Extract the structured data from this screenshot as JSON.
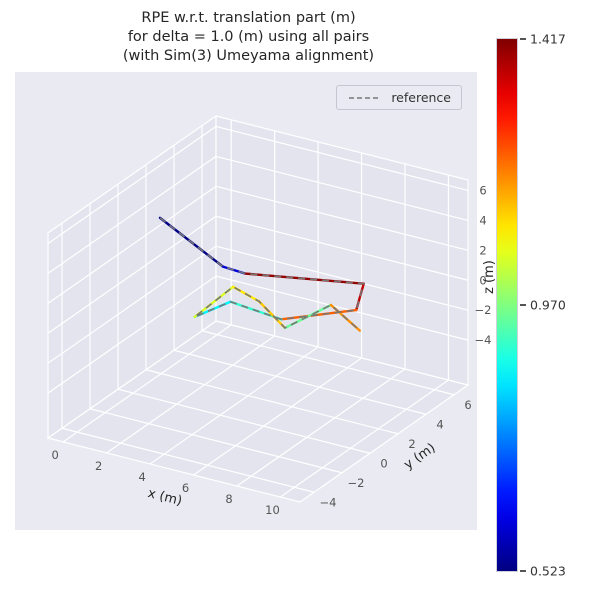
{
  "chart_data": {
    "type": "line",
    "plot_kind": "3d-trajectory-colored-by-error",
    "title": "RPE w.r.t. translation part (m) for delta = 1.0 (m) using all pairs (with Sim(3) Umeyama alignment)",
    "title_lines": [
      "RPE w.r.t. translation part (m)",
      "for delta = 1.0 (m) using all pairs",
      "(with Sim(3) Umeyama alignment)"
    ],
    "xlabel": "x (m)",
    "ylabel": "y (m)",
    "zlabel": "z (m)",
    "x_ticks": [
      0,
      2,
      4,
      6,
      8,
      10
    ],
    "y_ticks": [
      -4,
      -2,
      0,
      2,
      4,
      6
    ],
    "z_ticks": [
      -4,
      -2,
      0,
      2,
      4,
      6
    ],
    "x_range": [
      -0.7,
      10.9
    ],
    "y_range": [
      -5,
      7
    ],
    "z_range": [
      -7,
      6.7
    ],
    "grid": true,
    "legend": {
      "position": "upper right",
      "entries": [
        {
          "label": "reference",
          "linestyle": "dashed",
          "color": "#777777"
        }
      ]
    },
    "colorbar": {
      "colormap": "jet",
      "min": 0.523,
      "mid": 0.97,
      "max": 1.417,
      "min_label": "0.523",
      "mid_label": "0.970",
      "max_label": "1.417"
    },
    "trajectory": {
      "points_xyz": [
        [
          2.2,
          -1.5,
          6.5
        ],
        [
          4.0,
          0.2,
          2.8
        ],
        [
          4.5,
          1.0,
          2.0
        ],
        [
          9.0,
          2.5,
          2.0
        ],
        [
          9.3,
          1.5,
          1.0
        ],
        [
          6.5,
          0.5,
          0.0
        ],
        [
          4.8,
          -0.5,
          1.2
        ],
        [
          3.6,
          -1.2,
          0.2
        ],
        [
          4.6,
          0.0,
          1.8
        ],
        [
          5.6,
          0.3,
          1.0
        ],
        [
          6.6,
          0.6,
          -0.6
        ],
        [
          8.2,
          1.4,
          1.0
        ],
        [
          9.4,
          1.6,
          -0.4
        ]
      ],
      "segment_rpe": [
        0.53,
        0.6,
        1.4,
        1.36,
        1.22,
        0.9,
        0.85,
        1.05,
        1.1,
        1.13,
        0.95,
        1.18
      ]
    },
    "reference": {
      "label": "reference",
      "color": "#777777",
      "linestyle": "dashed"
    },
    "colors": {
      "axes_bg": "#eaeaf2",
      "pane": "#e4e4ef",
      "grid": "#ffffff",
      "tick_label": "#555555",
      "text": "#262626"
    }
  }
}
